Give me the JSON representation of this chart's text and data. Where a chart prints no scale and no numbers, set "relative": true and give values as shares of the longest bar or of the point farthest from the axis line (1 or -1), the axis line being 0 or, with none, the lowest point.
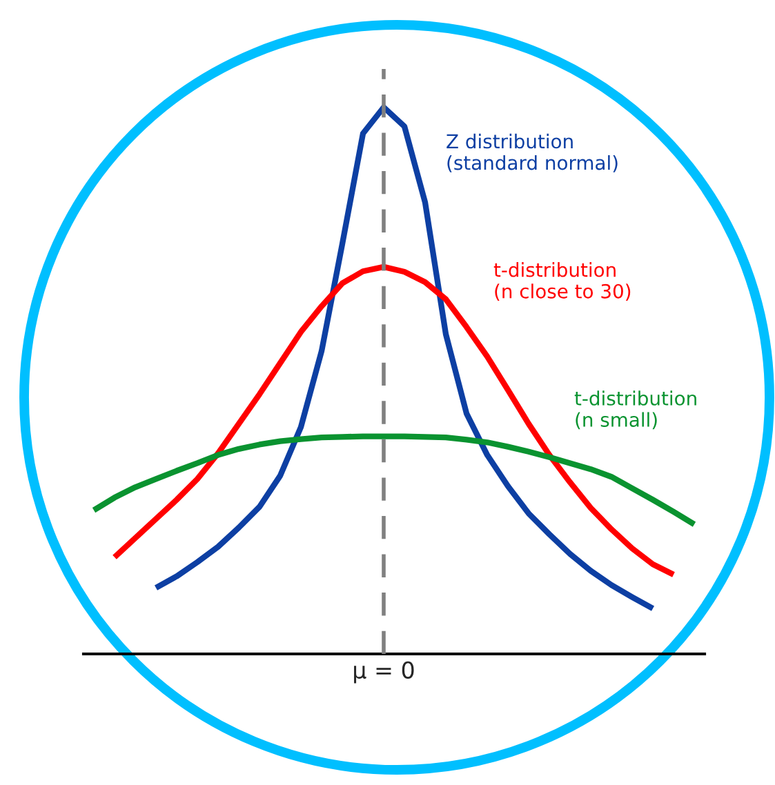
{
  "chart_data": {
    "type": "line",
    "relative": true,
    "legend": false,
    "marker": "none",
    "line_style": "solid",
    "categories": [
      null,
      null,
      null,
      null,
      null,
      null,
      null,
      null,
      null,
      null,
      null,
      null,
      null,
      null,
      null,
      null,
      null,
      null,
      null,
      null,
      null,
      null,
      null,
      null,
      null,
      null,
      null,
      null,
      null,
      null
    ],
    "series": [
      {
        "name": "Z distribution\n(standard normal)",
        "color": "#0d3fa3",
        "values": [
          null,
          null,
          null,
          0.121,
          0.142,
          0.168,
          0.196,
          0.231,
          0.269,
          0.326,
          0.415,
          0.554,
          0.75,
          0.952,
          1,
          0.965,
          0.826,
          0.585,
          0.44,
          0.364,
          0.307,
          0.257,
          0.219,
          0.183,
          0.152,
          0.126,
          0.104,
          0.083,
          null,
          null
        ]
      },
      {
        "name": "t-distribution\n(n close to 30)",
        "color": "#ff0000",
        "values": [
          null,
          0.177,
          0.212,
          0.247,
          0.282,
          0.32,
          0.367,
          0.421,
          0.475,
          0.532,
          0.589,
          0.636,
          0.678,
          0.7,
          0.708,
          0.699,
          0.68,
          0.649,
          0.598,
          0.544,
          0.483,
          0.421,
          0.364,
          0.314,
          0.267,
          0.228,
          0.193,
          0.164,
          0.145,
          null
        ]
      },
      {
        "name": "t-distribution\n(n small)",
        "color": "#0a9330",
        "values": [
          0.263,
          0.286,
          0.305,
          0.32,
          0.335,
          0.349,
          0.364,
          0.375,
          0.383,
          0.389,
          0.393,
          0.396,
          0.397,
          0.398,
          0.398,
          0.398,
          0.397,
          0.396,
          0.392,
          0.387,
          0.379,
          0.37,
          0.36,
          0.349,
          0.338,
          0.324,
          0.303,
          0.282,
          0.26,
          0.237
        ]
      }
    ],
    "annotations": [
      "μ = 0"
    ]
  }
}
